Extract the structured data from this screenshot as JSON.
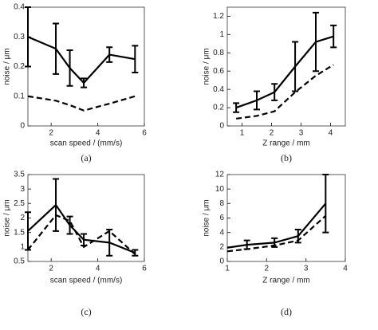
{
  "chart_data": [
    {
      "type": "line",
      "label": "(a)",
      "xlabel": "scan speed / (mm/s)",
      "ylabel": "noise / μm",
      "x": [
        1,
        2.2,
        2.8,
        3.4,
        4.5,
        5.6
      ],
      "series": [
        {
          "color": "#000000",
          "dashed": false,
          "values": [
            0.3,
            0.26,
            0.195,
            0.145,
            0.24,
            0.225
          ],
          "errors": [
            0.1,
            0.085,
            0.06,
            0.015,
            0.025,
            0.045
          ]
        },
        {
          "color": "#000000",
          "dashed": true,
          "values": [
            0.1,
            0.085,
            0.07,
            0.052,
            0.075,
            0.1
          ]
        }
      ],
      "xlim": [
        1,
        6
      ],
      "xticks": [
        2,
        4,
        6
      ],
      "ylim": [
        0,
        0.4
      ],
      "yticks": [
        0,
        0.1,
        0.2,
        0.3,
        0.4
      ]
    },
    {
      "type": "line",
      "label": "(b)",
      "xlabel": "Z range / mm",
      "ylabel": "noise / μm",
      "x": [
        0.8,
        1.5,
        2.1,
        2.8,
        3.5,
        4.1
      ],
      "series": [
        {
          "color": "#000000",
          "dashed": false,
          "values": [
            0.2,
            0.28,
            0.37,
            0.65,
            0.92,
            0.98
          ],
          "errors": [
            0.05,
            0.1,
            0.09,
            0.27,
            0.32,
            0.12
          ]
        },
        {
          "color": "#000000",
          "dashed": true,
          "values": [
            0.08,
            0.11,
            0.16,
            0.37,
            0.55,
            0.67
          ]
        }
      ],
      "xlim": [
        0.5,
        4.5
      ],
      "xticks": [
        1,
        2,
        3,
        4
      ],
      "ylim": [
        0,
        1.3
      ],
      "yticks": [
        0,
        0.2,
        0.4,
        0.6,
        0.8,
        1,
        1.2
      ]
    },
    {
      "type": "line",
      "label": "(c)",
      "xlabel": "scan speed / (mm/s)",
      "ylabel": "noise / μm",
      "x": [
        1,
        2.2,
        2.8,
        3.4,
        4.5,
        5.6
      ],
      "series": [
        {
          "color": "#000000",
          "dashed": false,
          "values": [
            1.55,
            2.45,
            1.75,
            1.25,
            1.15,
            0.8
          ],
          "errors": [
            0.65,
            0.9,
            0.3,
            0.2,
            0.45,
            0.1
          ]
        },
        {
          "color": "#000000",
          "dashed": true,
          "values": [
            0.9,
            2.1,
            1.9,
            1.0,
            1.55,
            0.75
          ]
        }
      ],
      "xlim": [
        1,
        6
      ],
      "xticks": [
        2,
        4,
        6
      ],
      "ylim": [
        0.5,
        3.5
      ],
      "yticks": [
        0.5,
        1,
        1.5,
        2,
        2.5,
        3,
        3.5
      ]
    },
    {
      "type": "line",
      "label": "(d)",
      "xlabel": "Z range / mm",
      "ylabel": "noise / μm",
      "x": [
        1,
        1.5,
        2.2,
        2.8,
        3.5
      ],
      "series": [
        {
          "color": "#000000",
          "dashed": false,
          "values": [
            1.9,
            2.3,
            2.6,
            3.5,
            8
          ],
          "errors": [
            null,
            0.6,
            0.6,
            0.9,
            4
          ]
        },
        {
          "color": "#000000",
          "dashed": true,
          "values": [
            1.4,
            1.7,
            2.2,
            2.9,
            6.3
          ]
        }
      ],
      "xlim": [
        1,
        4
      ],
      "xticks": [
        1,
        2,
        3,
        4
      ],
      "ylim": [
        0,
        12
      ],
      "yticks": [
        0,
        2,
        4,
        6,
        8,
        10,
        12
      ]
    }
  ]
}
